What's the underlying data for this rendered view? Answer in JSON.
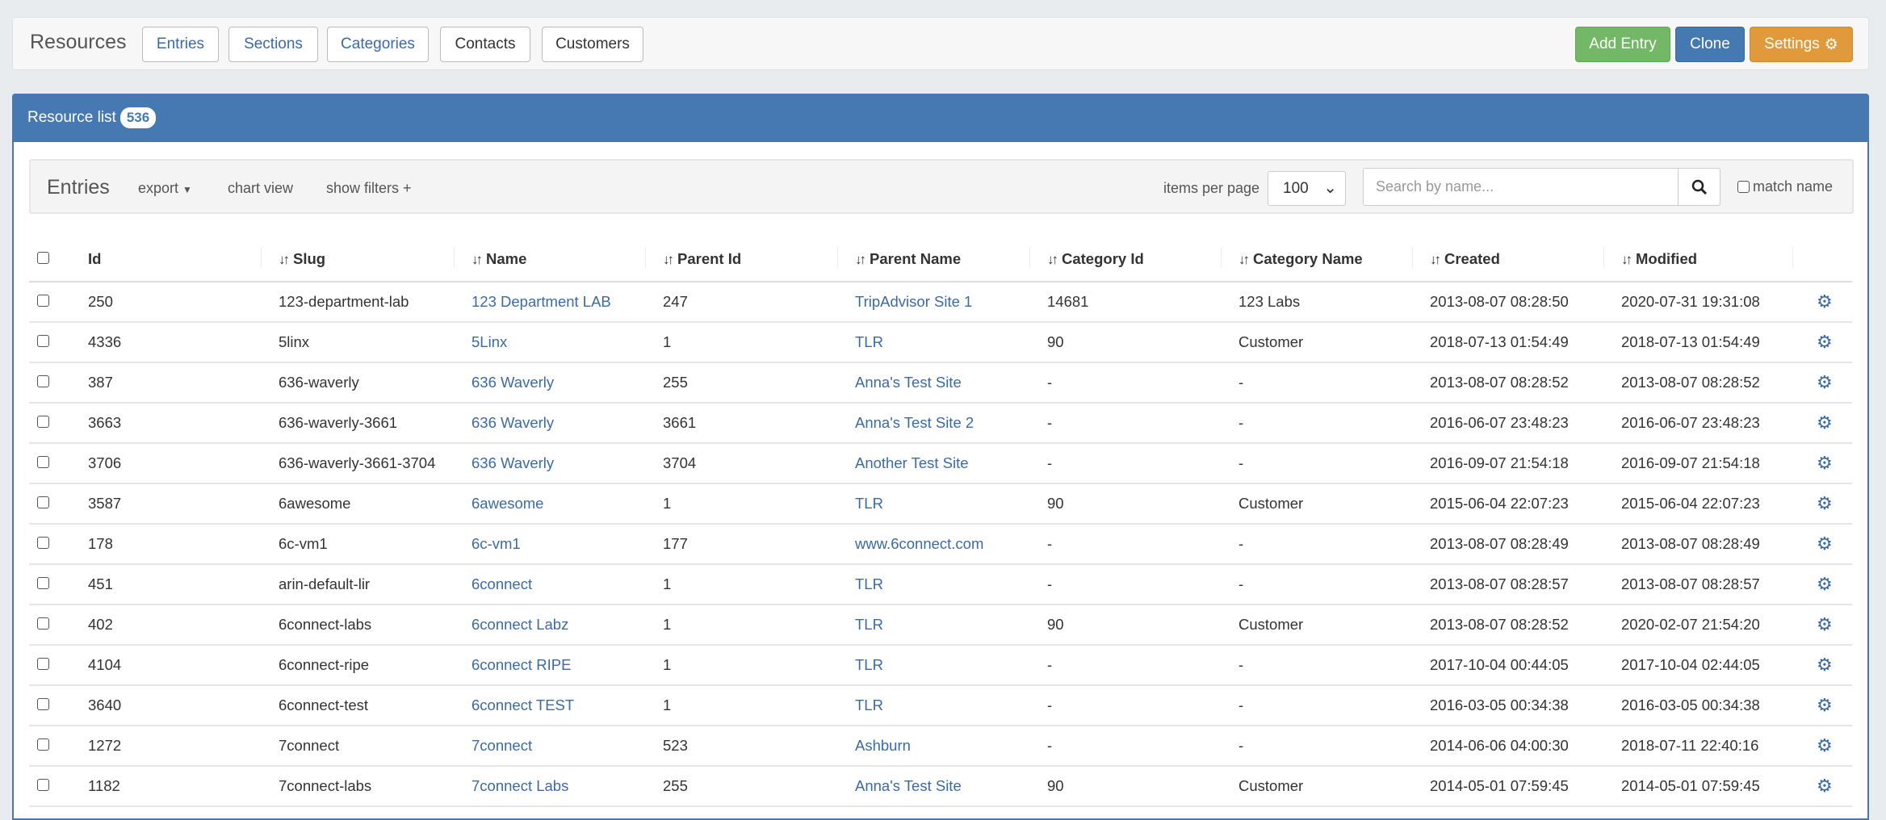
{
  "header": {
    "title": "Resources",
    "nav": [
      {
        "label": "Entries"
      },
      {
        "label": "Sections"
      },
      {
        "label": "Categories"
      },
      {
        "label": "Contacts"
      },
      {
        "label": "Customers"
      }
    ],
    "actions": {
      "add": "Add Entry",
      "clone": "Clone",
      "settings": "Settings"
    }
  },
  "colors": {
    "primary": "#4679b2",
    "success": "#72b866",
    "warning": "#e09a3c",
    "link": "#3a6aa8"
  },
  "panel": {
    "title": "Resource list",
    "count": "536"
  },
  "toolbar": {
    "title": "Entries",
    "export": "export",
    "chart": "chart view",
    "filters": "show filters +",
    "per_page_label": "items per page",
    "per_page": "100",
    "search_placeholder": "Search by name...",
    "match_name": "match name"
  },
  "table": {
    "headers": [
      "Id",
      "Slug",
      "Name",
      "Parent Id",
      "Parent Name",
      "Category Id",
      "Category Name",
      "Created",
      "Modified"
    ],
    "rows": [
      [
        "250",
        "123-department-lab",
        "123 Department LAB",
        "247",
        "TripAdvisor Site 1",
        "14681",
        "123 Labs",
        "2013-08-07 08:28:50",
        "2020-07-31 19:31:08"
      ],
      [
        "4336",
        "5linx",
        "5Linx",
        "1",
        "TLR",
        "90",
        "Customer",
        "2018-07-13 01:54:49",
        "2018-07-13 01:54:49"
      ],
      [
        "387",
        "636-waverly",
        "636 Waverly",
        "255",
        "Anna's Test Site",
        "-",
        "-",
        "2013-08-07 08:28:52",
        "2013-08-07 08:28:52"
      ],
      [
        "3663",
        "636-waverly-3661",
        "636 Waverly",
        "3661",
        "Anna's Test Site 2",
        "-",
        "-",
        "2016-06-07 23:48:23",
        "2016-06-07 23:48:23"
      ],
      [
        "3706",
        "636-waverly-3661-3704",
        "636 Waverly",
        "3704",
        "Another Test Site",
        "-",
        "-",
        "2016-09-07 21:54:18",
        "2016-09-07 21:54:18"
      ],
      [
        "3587",
        "6awesome",
        "6awesome",
        "1",
        "TLR",
        "90",
        "Customer",
        "2015-06-04 22:07:23",
        "2015-06-04 22:07:23"
      ],
      [
        "178",
        "6c-vm1",
        "6c-vm1",
        "177",
        "www.6connect.com",
        "-",
        "-",
        "2013-08-07 08:28:49",
        "2013-08-07 08:28:49"
      ],
      [
        "451",
        "arin-default-lir",
        "6connect",
        "1",
        "TLR",
        "-",
        "-",
        "2013-08-07 08:28:57",
        "2013-08-07 08:28:57"
      ],
      [
        "402",
        "6connect-labs",
        "6connect Labz",
        "1",
        "TLR",
        "90",
        "Customer",
        "2013-08-07 08:28:52",
        "2020-02-07 21:54:20"
      ],
      [
        "4104",
        "6connect-ripe",
        "6connect RIPE",
        "1",
        "TLR",
        "-",
        "-",
        "2017-10-04 00:44:05",
        "2017-10-04 02:44:05"
      ],
      [
        "3640",
        "6connect-test",
        "6connect TEST",
        "1",
        "TLR",
        "-",
        "-",
        "2016-03-05 00:34:38",
        "2016-03-05 00:34:38"
      ],
      [
        "1272",
        "7connect",
        "7connect",
        "523",
        "Ashburn",
        "-",
        "-",
        "2014-06-06 04:00:30",
        "2018-07-11 22:40:16"
      ],
      [
        "1182",
        "7connect-labs",
        "7connect Labs",
        "255",
        "Anna's Test Site",
        "90",
        "Customer",
        "2014-05-01 07:59:45",
        "2014-05-01 07:59:45"
      ]
    ]
  }
}
